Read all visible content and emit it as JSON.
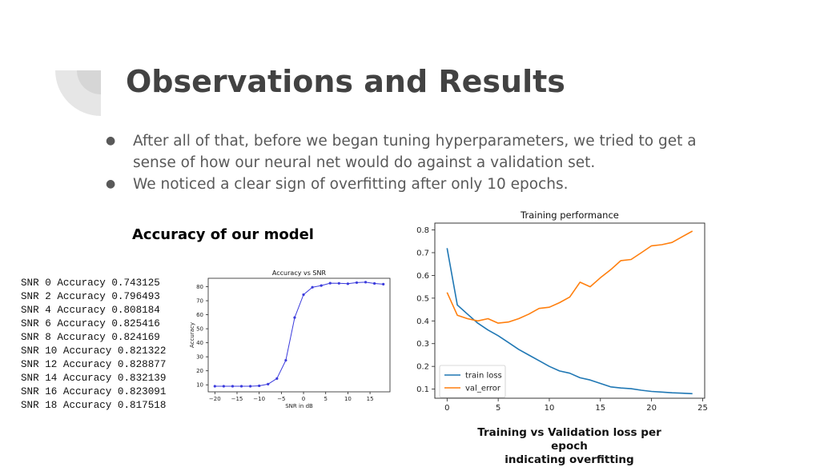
{
  "slide": {
    "title": "Observations and Results",
    "bullets": [
      "After all of that, before we began tuning hyperparameters, we tried to get a sense of how our neural net would do against a validation set.",
      "We noticed a clear sign of overfitting after only 10 epochs."
    ],
    "accuracy_heading": "Accuracy of our model",
    "accuracy_lines": [
      "SNR 0 Accuracy 0.743125",
      "SNR 2 Accuracy 0.796493",
      "SNR 4 Accuracy 0.808184",
      "SNR 6 Accuracy 0.825416",
      "SNR 8 Accuracy 0.824169",
      "SNR 10 Accuracy 0.821322",
      "SNR 12 Accuracy 0.828877",
      "SNR 14 Accuracy 0.832139",
      "SNR 16 Accuracy 0.823091",
      "SNR 18 Accuracy 0.817518"
    ],
    "caption_line1": "Training vs Validation loss per epoch",
    "caption_line2": "indicating overfitting"
  },
  "colors": {
    "title": "#424242",
    "decoration": "#e6e6e6",
    "accuracy_line": "#3b3bdc",
    "train_loss": "#1f77b4",
    "val_error": "#ff7f0e"
  },
  "chart_data": [
    {
      "type": "line",
      "title": "Accuracy vs SNR",
      "xlabel": "SNR in dB",
      "ylabel": "Accuracy",
      "xlim": [
        -21.5,
        19.5
      ],
      "ylim": [
        5,
        86
      ],
      "xticks": [
        -20,
        -15,
        -10,
        -5,
        0,
        5,
        10,
        15
      ],
      "xtick_labels": [
        "−20",
        "−15",
        "−10",
        "−5",
        "0",
        "5",
        "10",
        "15"
      ],
      "yticks": [
        10,
        20,
        30,
        40,
        50,
        60,
        70,
        80
      ],
      "grid": false,
      "series": [
        {
          "x": [
            -20,
            -18,
            -16,
            -14,
            -12,
            -10,
            -8,
            -6,
            -4,
            -2,
            0,
            2,
            4,
            6,
            8,
            10,
            12,
            14,
            16,
            18
          ],
          "y": [
            9,
            9,
            9,
            9,
            9,
            9.3,
            10.5,
            14.5,
            27.5,
            58,
            74.3,
            79.6,
            80.8,
            82.5,
            82.4,
            82.1,
            82.9,
            83.2,
            82.3,
            81.8
          ]
        }
      ]
    },
    {
      "type": "line",
      "title": "Training performance",
      "xlabel": "",
      "ylabel": "",
      "xlim": [
        -1.2,
        25.2
      ],
      "ylim": [
        0.06,
        0.83
      ],
      "xticks": [
        0,
        5,
        10,
        15,
        20,
        25
      ],
      "yticks": [
        0.1,
        0.2,
        0.3,
        0.4,
        0.5,
        0.6,
        0.7,
        0.8
      ],
      "ytick_labels": [
        "0.1",
        "0.2",
        "0.3",
        "0.4",
        "0.5",
        "0.6",
        "0.7",
        "0.8"
      ],
      "grid": false,
      "legend": "bottom-left",
      "series": [
        {
          "name": "train loss",
          "x": [
            0,
            1,
            2,
            3,
            4,
            5,
            6,
            7,
            8,
            9,
            10,
            11,
            12,
            13,
            14,
            15,
            16,
            17,
            18,
            19,
            20,
            21,
            22,
            23,
            24
          ],
          "y": [
            0.72,
            0.47,
            0.43,
            0.39,
            0.36,
            0.335,
            0.305,
            0.275,
            0.25,
            0.225,
            0.2,
            0.18,
            0.17,
            0.15,
            0.14,
            0.125,
            0.11,
            0.105,
            0.102,
            0.095,
            0.09,
            0.087,
            0.084,
            0.082,
            0.08
          ]
        },
        {
          "name": "val_error",
          "x": [
            0,
            1,
            2,
            3,
            4,
            5,
            6,
            7,
            8,
            9,
            10,
            11,
            12,
            13,
            14,
            15,
            16,
            17,
            18,
            19,
            20,
            21,
            22,
            23,
            24
          ],
          "y": [
            0.525,
            0.425,
            0.41,
            0.4,
            0.41,
            0.39,
            0.395,
            0.41,
            0.43,
            0.455,
            0.46,
            0.48,
            0.505,
            0.57,
            0.55,
            0.59,
            0.625,
            0.665,
            0.67,
            0.7,
            0.73,
            0.735,
            0.745,
            0.77,
            0.795
          ]
        }
      ]
    }
  ]
}
